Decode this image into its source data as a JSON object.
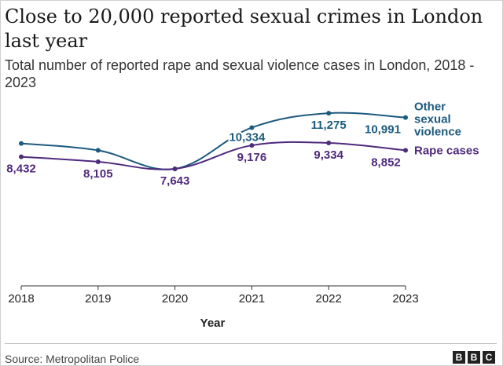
{
  "title": "Close to 20,000 reported sexual crimes in London last year",
  "subtitle": "Total number of reported rape and sexual violence cases in London, 2018 - 2023",
  "source": "Source: Metropolitan Police",
  "logo": [
    "B",
    "B",
    "C"
  ],
  "colors": {
    "other": "#1c5a7f",
    "rape": "#4f2a7d"
  },
  "chart_data": {
    "type": "line",
    "x": [
      "2018",
      "2019",
      "2020",
      "2021",
      "2022",
      "2023"
    ],
    "xlabel": "Year",
    "ylabel": "",
    "ylim": [
      0,
      12000
    ],
    "grid": false,
    "series": [
      {
        "name": "Other sexual violence",
        "values": [
          9300,
          8850,
          7643,
          10334,
          11275,
          10991
        ],
        "labels": [
          "",
          "",
          "",
          "10,334",
          "11,275",
          "10,991"
        ]
      },
      {
        "name": "Rape cases",
        "values": [
          8432,
          8105,
          7643,
          9176,
          9334,
          8852
        ],
        "labels": [
          "8,432",
          "8,105",
          "7,643",
          "9,176",
          "9,334",
          "8,852"
        ]
      }
    ]
  }
}
